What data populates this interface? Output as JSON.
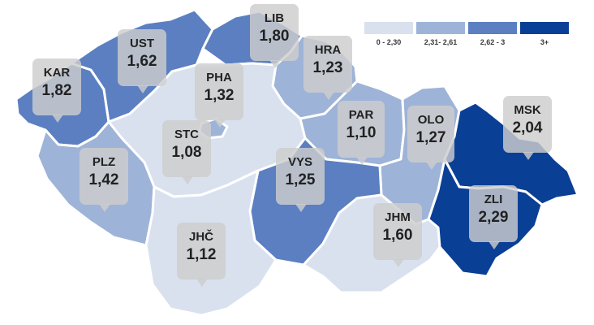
{
  "legend": [
    {
      "label": "0 - 2,30",
      "color": "#d9e1ef"
    },
    {
      "label": "2,31- 2,61",
      "color": "#9eb3d8"
    },
    {
      "label": "2,62 - 3",
      "color": "#5b7fc1"
    },
    {
      "label": "3+",
      "color": "#0a3f96"
    }
  ],
  "regions": [
    {
      "code": "KAR",
      "value": "1,82",
      "color": "#5b7fc1"
    },
    {
      "code": "UST",
      "value": "1,62",
      "color": "#5b7fc1"
    },
    {
      "code": "LIB",
      "value": "1,80",
      "color": "#5b7fc1"
    },
    {
      "code": "HRA",
      "value": "1,23",
      "color": "#9eb3d8"
    },
    {
      "code": "PHA",
      "value": "1,32",
      "color": "#9eb3d8"
    },
    {
      "code": "STC",
      "value": "1,08",
      "color": "#d9e1ef"
    },
    {
      "code": "PAR",
      "value": "1,10",
      "color": "#9eb3d8"
    },
    {
      "code": "OLO",
      "value": "1,27",
      "color": "#9eb3d8"
    },
    {
      "code": "MSK",
      "value": "2,04",
      "color": "#0a3f96"
    },
    {
      "code": "PLZ",
      "value": "1,42",
      "color": "#9eb3d8"
    },
    {
      "code": "VYS",
      "value": "1,25",
      "color": "#5b7fc1"
    },
    {
      "code": "ZLI",
      "value": "2,29",
      "color": "#0a3f96"
    },
    {
      "code": "JHM",
      "value": "1,60",
      "color": "#d9e1ef"
    },
    {
      "code": "JHČ",
      "value": "1,12",
      "color": "#d9e1ef"
    }
  ]
}
